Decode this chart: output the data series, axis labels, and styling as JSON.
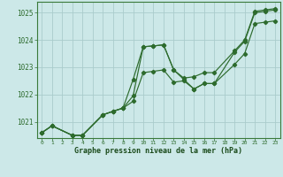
{
  "xlabel": "Graphe pression niveau de la mer (hPa)",
  "ylim": [
    1020.4,
    1025.4
  ],
  "xlim": [
    -0.5,
    23.5
  ],
  "bg_color": "#cce8e8",
  "grid_color": "#aacccc",
  "line_color": "#2d6b2d",
  "line_a_x": [
    0,
    1,
    3,
    4,
    6,
    7,
    8,
    9,
    10,
    11,
    12,
    13,
    14,
    15,
    16,
    17,
    19,
    20,
    21,
    22,
    23
  ],
  "line_a_y": [
    1020.6,
    1020.85,
    1020.5,
    1020.5,
    1021.25,
    1021.38,
    1021.5,
    1021.75,
    1022.8,
    1022.85,
    1022.9,
    1022.45,
    1022.5,
    1022.2,
    1022.4,
    1022.4,
    1023.1,
    1023.5,
    1024.6,
    1024.65,
    1024.7
  ],
  "line_b_x": [
    0,
    1,
    3,
    4,
    6,
    7,
    8,
    9,
    10,
    11,
    12,
    13,
    14,
    15,
    16,
    17,
    19,
    20,
    21,
    22,
    23
  ],
  "line_b_y": [
    1020.6,
    1020.85,
    1020.5,
    1020.5,
    1021.25,
    1021.38,
    1021.5,
    1021.95,
    1023.75,
    1023.78,
    1023.82,
    1022.9,
    1022.55,
    1022.2,
    1022.4,
    1022.4,
    1023.55,
    1023.95,
    1025.0,
    1025.05,
    1025.1
  ],
  "line_c_x": [
    0,
    1,
    3,
    4,
    6,
    7,
    8,
    9,
    10,
    11,
    12,
    13,
    14,
    15,
    16,
    17,
    19,
    20,
    21,
    22,
    23
  ],
  "line_c_y": [
    1020.6,
    1020.85,
    1020.5,
    1020.5,
    1021.25,
    1021.38,
    1021.5,
    1022.55,
    1023.75,
    1023.78,
    1023.82,
    1022.9,
    1022.6,
    1022.65,
    1022.8,
    1022.8,
    1023.6,
    1024.0,
    1025.05,
    1025.1,
    1025.15
  ],
  "xticks": [
    0,
    1,
    2,
    3,
    4,
    5,
    6,
    7,
    8,
    9,
    10,
    11,
    12,
    13,
    14,
    15,
    16,
    17,
    18,
    19,
    20,
    21,
    22,
    23
  ],
  "yticks": [
    1021,
    1022,
    1023,
    1024,
    1025
  ]
}
